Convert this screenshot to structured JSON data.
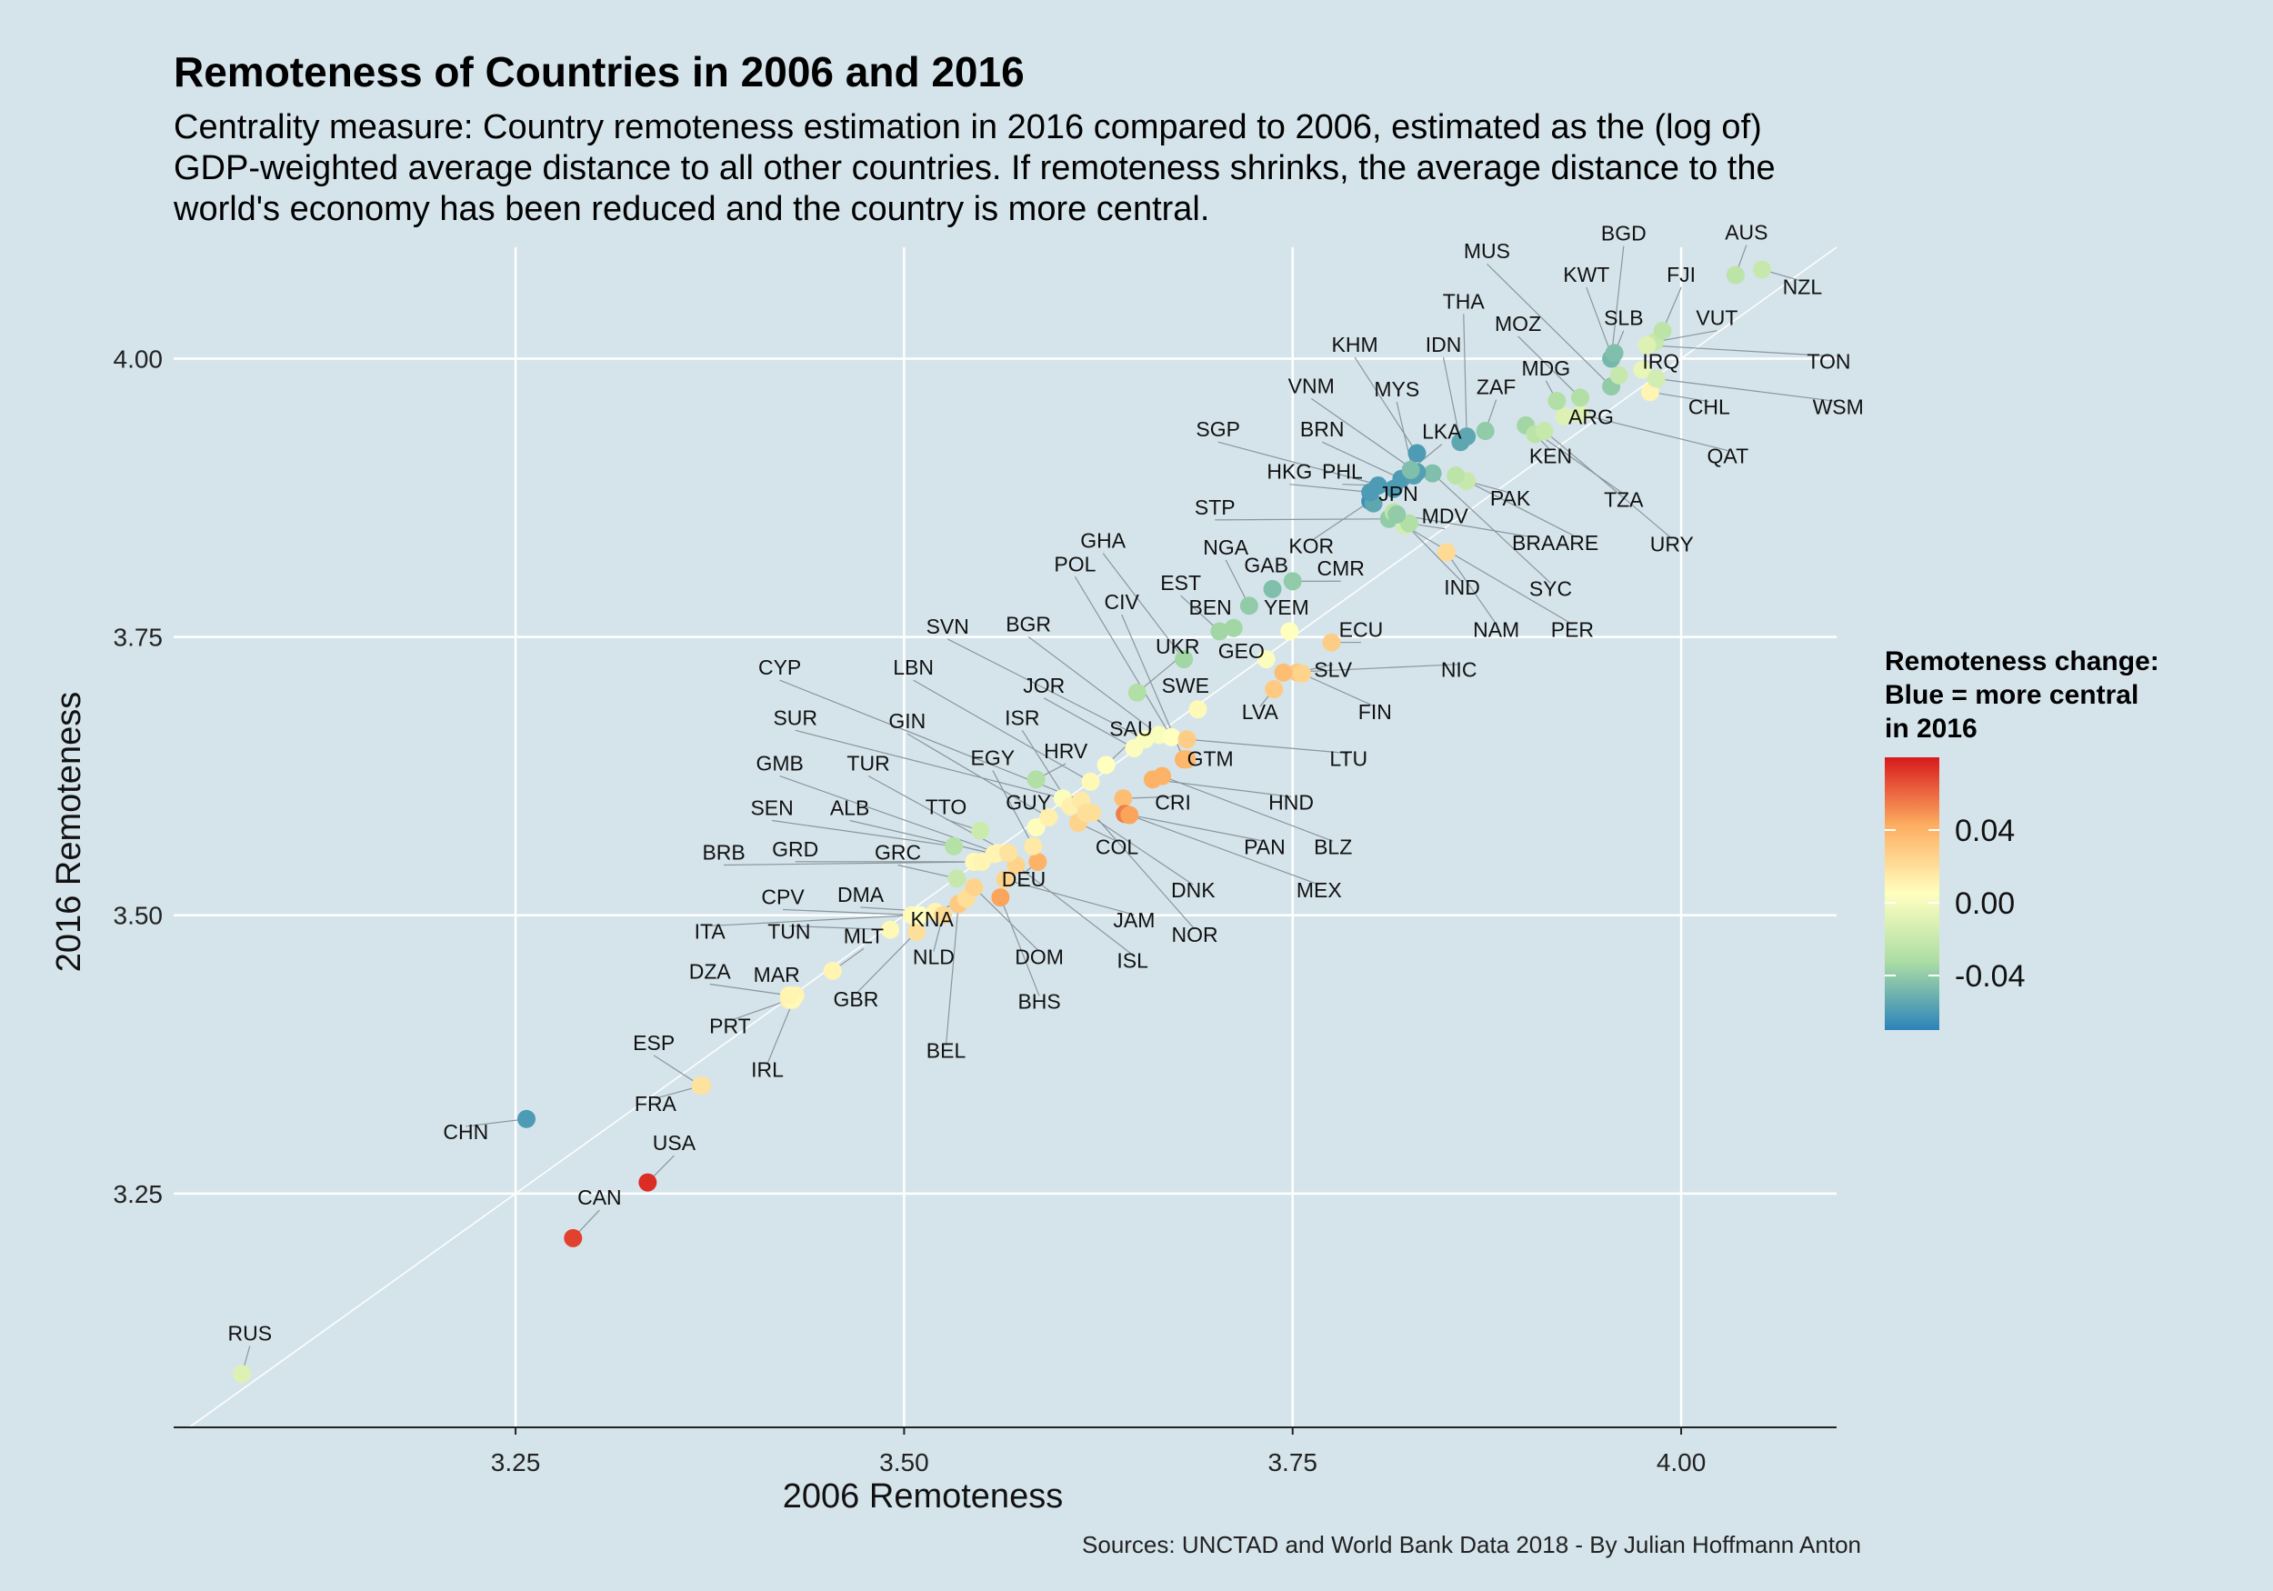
{
  "chart_data": {
    "type": "scatter",
    "title": "Remoteness of Countries in 2006 and 2016",
    "subtitle": [
      "Centrality measure: Country remoteness estimation in 2016 compared to 2006, estimated as the (log of)",
      "GDP-weighted average distance to all other countries. If remoteness shrinks, the average distance to the",
      "world's economy has been reduced and the country is more central."
    ],
    "xlabel": "2006 Remoteness",
    "ylabel": "2016 Remoteness",
    "xlim": [
      3.03,
      4.1
    ],
    "ylim": [
      3.04,
      4.1
    ],
    "xticks": [
      3.25,
      3.5,
      3.75,
      4.0
    ],
    "xtick_labels": [
      "3.25",
      "3.50",
      "3.75",
      "4.00"
    ],
    "yticks": [
      3.25,
      3.5,
      3.75,
      4.0
    ],
    "ytick_labels": [
      "3.25",
      "3.50",
      "3.75",
      "4.00"
    ],
    "reference_line": "y = x",
    "legend": {
      "title": [
        "Remoteness change:",
        "Blue = more central",
        "in 2016"
      ],
      "ticks": [
        0.04,
        0.0,
        -0.04
      ],
      "tick_labels": [
        "0.04",
        "0.00",
        "-0.04"
      ],
      "range": [
        -0.07,
        0.08
      ],
      "colors": [
        "#2b83ba",
        "#abdda4",
        "#ffffbf",
        "#fdae61",
        "#d7191c"
      ]
    },
    "points": [
      {
        "code": "RUS",
        "x": 3.074,
        "y": 3.088,
        "lx": 3.079,
        "ly": 3.118
      },
      {
        "code": "CHN",
        "x": 3.257,
        "y": 3.317,
        "lx": 3.218,
        "ly": 3.299
      },
      {
        "code": "CAN",
        "x": 3.287,
        "y": 3.21,
        "lx": 3.304,
        "ly": 3.24
      },
      {
        "code": "USA",
        "x": 3.335,
        "y": 3.26,
        "lx": 3.352,
        "ly": 3.289
      },
      {
        "code": "FRA",
        "x": 3.37,
        "y": 3.347,
        "lx": 3.34,
        "ly": 3.324
      },
      {
        "code": "ESP",
        "x": 3.369,
        "y": 3.347,
        "lx": 3.339,
        "ly": 3.379
      },
      {
        "code": "PRT",
        "x": 3.426,
        "y": 3.424,
        "lx": 3.388,
        "ly": 3.394
      },
      {
        "code": "IRL",
        "x": 3.43,
        "y": 3.428,
        "lx": 3.412,
        "ly": 3.355
      },
      {
        "code": "MAR",
        "x": 3.428,
        "y": 3.424,
        "lx": 3.418,
        "ly": 3.44
      },
      {
        "code": "DZA",
        "x": 3.426,
        "y": 3.428,
        "lx": 3.375,
        "ly": 3.443
      },
      {
        "code": "MLT",
        "x": 3.454,
        "y": 3.45,
        "lx": 3.474,
        "ly": 3.475
      },
      {
        "code": "TUN",
        "x": 3.491,
        "y": 3.487,
        "lx": 3.426,
        "ly": 3.479
      },
      {
        "code": "ITA",
        "x": 3.505,
        "y": 3.5,
        "lx": 3.375,
        "ly": 3.479
      },
      {
        "code": "GBR",
        "x": 3.508,
        "y": 3.485,
        "lx": 3.469,
        "ly": 3.418
      },
      {
        "code": "CPV",
        "x": 3.51,
        "y": 3.5,
        "lx": 3.422,
        "ly": 3.51
      },
      {
        "code": "DMA",
        "x": 3.52,
        "y": 3.503,
        "lx": 3.472,
        "ly": 3.512
      },
      {
        "code": "NLD",
        "x": 3.525,
        "y": 3.5,
        "lx": 3.519,
        "ly": 3.456
      },
      {
        "code": "BEL",
        "x": 3.535,
        "y": 3.51,
        "lx": 3.527,
        "ly": 3.372
      },
      {
        "code": "KNA",
        "x": 3.54,
        "y": 3.515,
        "lx": 3.518,
        "ly": 3.49
      },
      {
        "code": "DOM",
        "x": 3.545,
        "y": 3.525,
        "lx": 3.587,
        "ly": 3.456
      },
      {
        "code": "BHS",
        "x": 3.562,
        "y": 3.516,
        "lx": 3.587,
        "ly": 3.416
      },
      {
        "code": "JAM",
        "x": 3.565,
        "y": 3.532,
        "lx": 3.648,
        "ly": 3.489
      },
      {
        "code": "ISL",
        "x": 3.572,
        "y": 3.545,
        "lx": 3.647,
        "ly": 3.453
      },
      {
        "code": "DEU",
        "x": 3.586,
        "y": 3.548,
        "lx": 3.577,
        "ly": 3.526
      },
      {
        "code": "GRC",
        "x": 3.534,
        "y": 3.533,
        "lx": 3.496,
        "ly": 3.55
      },
      {
        "code": "GRD",
        "x": 3.545,
        "y": 3.548,
        "lx": 3.43,
        "ly": 3.553
      },
      {
        "code": "BRB",
        "x": 3.55,
        "y": 3.548,
        "lx": 3.384,
        "ly": 3.55
      },
      {
        "code": "ALB",
        "x": 3.558,
        "y": 3.555,
        "lx": 3.465,
        "ly": 3.59
      },
      {
        "code": "SEN",
        "x": 3.532,
        "y": 3.562,
        "lx": 3.415,
        "ly": 3.59
      },
      {
        "code": "TTO",
        "x": 3.549,
        "y": 3.576,
        "lx": 3.527,
        "ly": 3.591
      },
      {
        "code": "GMB",
        "x": 3.56,
        "y": 3.556,
        "lx": 3.42,
        "ly": 3.63
      },
      {
        "code": "TUR",
        "x": 3.567,
        "y": 3.556,
        "lx": 3.477,
        "ly": 3.63
      },
      {
        "code": "GUY",
        "x": 3.585,
        "y": 3.579,
        "lx": 3.58,
        "ly": 3.595
      },
      {
        "code": "EGY",
        "x": 3.583,
        "y": 3.562,
        "lx": 3.557,
        "ly": 3.635
      },
      {
        "code": "GIN",
        "x": 3.593,
        "y": 3.588,
        "lx": 3.502,
        "ly": 3.668
      },
      {
        "code": "SUR",
        "x": 3.602,
        "y": 3.605,
        "lx": 3.43,
        "ly": 3.671
      },
      {
        "code": "HRV",
        "x": 3.585,
        "y": 3.622,
        "lx": 3.604,
        "ly": 3.641
      },
      {
        "code": "ISR",
        "x": 3.607,
        "y": 3.598,
        "lx": 3.576,
        "ly": 3.671
      },
      {
        "code": "CYP",
        "x": 3.614,
        "y": 3.603,
        "lx": 3.42,
        "ly": 3.716
      },
      {
        "code": "LBN",
        "x": 3.62,
        "y": 3.62,
        "lx": 3.506,
        "ly": 3.716
      },
      {
        "code": "COL",
        "x": 3.612,
        "y": 3.583,
        "lx": 3.637,
        "ly": 3.555
      },
      {
        "code": "DNK",
        "x": 3.617,
        "y": 3.592,
        "lx": 3.686,
        "ly": 3.516
      },
      {
        "code": "NOR",
        "x": 3.621,
        "y": 3.592,
        "lx": 3.687,
        "ly": 3.476
      },
      {
        "code": "CRI",
        "x": 3.641,
        "y": 3.605,
        "lx": 3.673,
        "ly": 3.595
      },
      {
        "code": "PAN",
        "x": 3.642,
        "y": 3.591,
        "lx": 3.732,
        "ly": 3.555
      },
      {
        "code": "MEX",
        "x": 3.645,
        "y": 3.59,
        "lx": 3.767,
        "ly": 3.516
      },
      {
        "code": "SAU",
        "x": 3.63,
        "y": 3.635,
        "lx": 3.646,
        "ly": 3.661
      },
      {
        "code": "JOR",
        "x": 3.648,
        "y": 3.65,
        "lx": 3.59,
        "ly": 3.7
      },
      {
        "code": "SVN",
        "x": 3.655,
        "y": 3.658,
        "lx": 3.528,
        "ly": 3.753
      },
      {
        "code": "BGR",
        "x": 3.664,
        "y": 3.662,
        "lx": 3.58,
        "ly": 3.755
      },
      {
        "code": "POL",
        "x": 3.672,
        "y": 3.66,
        "lx": 3.61,
        "ly": 3.809
      },
      {
        "code": "CIV",
        "x": 3.68,
        "y": 3.64,
        "lx": 3.64,
        "ly": 3.775
      },
      {
        "code": "UKR",
        "x": 3.65,
        "y": 3.7,
        "lx": 3.676,
        "ly": 3.735
      },
      {
        "code": "SWE",
        "x": 3.689,
        "y": 3.685,
        "lx": 3.681,
        "ly": 3.7
      },
      {
        "code": "HND",
        "x": 3.66,
        "y": 3.622,
        "lx": 3.749,
        "ly": 3.595
      },
      {
        "code": "BLZ",
        "x": 3.666,
        "y": 3.625,
        "lx": 3.776,
        "ly": 3.555
      },
      {
        "code": "GTM",
        "x": 3.682,
        "y": 3.64,
        "lx": 3.697,
        "ly": 3.634
      },
      {
        "code": "LTU",
        "x": 3.682,
        "y": 3.658,
        "lx": 3.786,
        "ly": 3.634
      },
      {
        "code": "GHA",
        "x": 3.68,
        "y": 3.73,
        "lx": 3.628,
        "ly": 3.83
      },
      {
        "code": "EST",
        "x": 3.703,
        "y": 3.755,
        "lx": 3.678,
        "ly": 3.792
      },
      {
        "code": "GEO",
        "x": 3.733,
        "y": 3.73,
        "lx": 3.717,
        "ly": 3.731
      },
      {
        "code": "SLV",
        "x": 3.753,
        "y": 3.718,
        "lx": 3.776,
        "ly": 3.714
      },
      {
        "code": "NIC",
        "x": 3.744,
        "y": 3.718,
        "lx": 3.857,
        "ly": 3.714
      },
      {
        "code": "LVA",
        "x": 3.738,
        "y": 3.703,
        "lx": 3.729,
        "ly": 3.676
      },
      {
        "code": "FIN",
        "x": 3.756,
        "y": 3.717,
        "lx": 3.803,
        "ly": 3.676
      },
      {
        "code": "ECU",
        "x": 3.775,
        "y": 3.745,
        "lx": 3.794,
        "ly": 3.75
      },
      {
        "code": "YEM",
        "x": 3.748,
        "y": 3.755,
        "lx": 3.746,
        "ly": 3.77
      },
      {
        "code": "BEN",
        "x": 3.712,
        "y": 3.758,
        "lx": 3.697,
        "ly": 3.77
      },
      {
        "code": "NGA",
        "x": 3.722,
        "y": 3.778,
        "lx": 3.707,
        "ly": 3.824
      },
      {
        "code": "GAB",
        "x": 3.737,
        "y": 3.793,
        "lx": 3.733,
        "ly": 3.808
      },
      {
        "code": "CMR",
        "x": 3.75,
        "y": 3.8,
        "lx": 3.781,
        "ly": 3.805
      },
      {
        "code": "STP",
        "x": 3.812,
        "y": 3.856,
        "lx": 3.7,
        "ly": 3.86
      },
      {
        "code": "NAM",
        "x": 3.849,
        "y": 3.826,
        "lx": 3.881,
        "ly": 3.75
      },
      {
        "code": "IND",
        "x": 3.815,
        "y": 3.862,
        "lx": 3.859,
        "ly": 3.788
      },
      {
        "code": "PER",
        "x": 3.822,
        "y": 3.85,
        "lx": 3.93,
        "ly": 3.75
      },
      {
        "code": "KOR",
        "x": 3.8,
        "y": 3.872,
        "lx": 3.762,
        "ly": 3.825
      },
      {
        "code": "JPN",
        "x": 3.802,
        "y": 3.87,
        "lx": 3.818,
        "ly": 3.872
      },
      {
        "code": "HKG",
        "x": 3.8,
        "y": 3.88,
        "lx": 3.748,
        "ly": 3.892
      },
      {
        "code": "PHL",
        "x": 3.805,
        "y": 3.886,
        "lx": 3.782,
        "ly": 3.892
      },
      {
        "code": "MDV",
        "x": 3.825,
        "y": 3.852,
        "lx": 3.848,
        "ly": 3.852
      },
      {
        "code": "BRA",
        "x": 3.817,
        "y": 3.86,
        "lx": 3.905,
        "ly": 3.828
      },
      {
        "code": "SYC",
        "x": 3.84,
        "y": 3.897,
        "lx": 3.916,
        "ly": 3.787
      },
      {
        "code": "SGP",
        "x": 3.815,
        "y": 3.883,
        "lx": 3.702,
        "ly": 3.93
      },
      {
        "code": "BRN",
        "x": 3.82,
        "y": 3.892,
        "lx": 3.769,
        "ly": 3.93
      },
      {
        "code": "VNM",
        "x": 3.83,
        "y": 3.898,
        "lx": 3.762,
        "ly": 3.969
      },
      {
        "code": "MYS",
        "x": 3.828,
        "y": 3.895,
        "lx": 3.817,
        "ly": 3.966
      },
      {
        "code": "LKA",
        "x": 3.826,
        "y": 3.9,
        "lx": 3.846,
        "ly": 3.928
      },
      {
        "code": "PAK",
        "x": 3.862,
        "y": 3.89,
        "lx": 3.89,
        "ly": 3.868
      },
      {
        "code": "ARE",
        "x": 3.855,
        "y": 3.895,
        "lx": 3.933,
        "ly": 3.828
      },
      {
        "code": "KHM",
        "x": 3.83,
        "y": 3.915,
        "lx": 3.79,
        "ly": 4.006
      },
      {
        "code": "IDN",
        "x": 3.858,
        "y": 3.925,
        "lx": 3.847,
        "ly": 4.006
      },
      {
        "code": "THA",
        "x": 3.862,
        "y": 3.93,
        "lx": 3.86,
        "ly": 4.045
      },
      {
        "code": "ZAF",
        "x": 3.874,
        "y": 3.935,
        "lx": 3.881,
        "ly": 3.968
      },
      {
        "code": "TZA",
        "x": 3.9,
        "y": 3.94,
        "lx": 3.963,
        "ly": 3.867
      },
      {
        "code": "KEN",
        "x": 3.906,
        "y": 3.932,
        "lx": 3.916,
        "ly": 3.906
      },
      {
        "code": "URY",
        "x": 3.912,
        "y": 3.935,
        "lx": 3.994,
        "ly": 3.827
      },
      {
        "code": "QAT",
        "x": 3.935,
        "y": 3.95,
        "lx": 4.03,
        "ly": 3.906
      },
      {
        "code": "ARG",
        "x": 3.925,
        "y": 3.948,
        "lx": 3.942,
        "ly": 3.941
      },
      {
        "code": "MDG",
        "x": 3.92,
        "y": 3.962,
        "lx": 3.913,
        "ly": 3.985
      },
      {
        "code": "MOZ",
        "x": 3.935,
        "y": 3.965,
        "lx": 3.895,
        "ly": 4.025
      },
      {
        "code": "MUS",
        "x": 3.955,
        "y": 3.975,
        "lx": 3.875,
        "ly": 4.09
      },
      {
        "code": "KWT",
        "x": 3.96,
        "y": 3.985,
        "lx": 3.939,
        "ly": 4.069
      },
      {
        "code": "BGD",
        "x": 3.955,
        "y": 4.0,
        "lx": 3.963,
        "ly": 4.106
      },
      {
        "code": "SLB",
        "x": 3.957,
        "y": 4.005,
        "lx": 3.963,
        "ly": 4.03
      },
      {
        "code": "IRQ",
        "x": 3.975,
        "y": 3.99,
        "lx": 3.987,
        "ly": 3.991
      },
      {
        "code": "CHL",
        "x": 3.98,
        "y": 3.97,
        "lx": 4.018,
        "ly": 3.95
      },
      {
        "code": "VUT",
        "x": 3.983,
        "y": 4.015,
        "lx": 4.023,
        "ly": 4.03
      },
      {
        "code": "FJI",
        "x": 3.988,
        "y": 4.025,
        "lx": 4.0,
        "ly": 4.069
      },
      {
        "code": "TON",
        "x": 3.978,
        "y": 4.012,
        "lx": 4.095,
        "ly": 3.991
      },
      {
        "code": "WSM",
        "x": 3.984,
        "y": 3.982,
        "lx": 4.101,
        "ly": 3.95
      },
      {
        "code": "AUS",
        "x": 4.035,
        "y": 4.075,
        "lx": 4.042,
        "ly": 4.107
      },
      {
        "code": "NZL",
        "x": 4.052,
        "y": 4.08,
        "lx": 4.078,
        "ly": 4.058
      }
    ],
    "changes": {
      "RUS": -0.01,
      "CHN": -0.06,
      "CAN": 0.07,
      "USA": 0.075,
      "FRA": 0.02,
      "ESP": 0.018,
      "PRT": 0.012,
      "IRL": 0.01,
      "MAR": 0.008,
      "DZA": 0.01,
      "MLT": 0.01,
      "TUN": 0.008,
      "ITA": 0.008,
      "GBR": 0.02,
      "CPV": 0.005,
      "DMA": 0.01,
      "NLD": 0.022,
      "BEL": 0.03,
      "KNA": 0.02,
      "DOM": 0.025,
      "BHS": 0.045,
      "JAM": 0.025,
      "ISL": 0.025,
      "DEU": 0.04,
      "GRC": -0.02,
      "GRD": 0.008,
      "BRB": 0.01,
      "ALB": 0.01,
      "SEN": -0.028,
      "TTO": -0.018,
      "GMB": 0.01,
      "TUR": 0.018,
      "GUY": 0.006,
      "EGY": 0.015,
      "GIN": 0.012,
      "SUR": 0.003,
      "HRV": -0.03,
      "ISR": 0.012,
      "CYP": 0.015,
      "LBN": 0.008,
      "COL": 0.025,
      "DNK": 0.02,
      "NOR": 0.02,
      "CRI": 0.035,
      "PAN": 0.055,
      "MEX": 0.045,
      "SAU": 0.005,
      "JOR": 0.003,
      "SVN": 0.002,
      "BGR": 0.002,
      "POL": 0.005,
      "CIV": 0.04,
      "UKR": -0.03,
      "SWE": 0.008,
      "HND": 0.04,
      "BLZ": 0.04,
      "GTM": 0.038,
      "LTU": 0.028,
      "GHA": -0.035,
      "EST": -0.035,
      "GEO": 0.003,
      "SLV": 0.03,
      "NIC": 0.035,
      "LVA": 0.03,
      "FIN": 0.025,
      "ECU": 0.028,
      "YEM": 0.005,
      "BEN": -0.035,
      "NGA": -0.04,
      "GAB": -0.045,
      "CMR": -0.04,
      "STP": -0.04,
      "NAM": 0.022,
      "IND": -0.025,
      "PER": -0.015,
      "KOR": -0.065,
      "JPN": -0.055,
      "HKG": -0.06,
      "PHL": -0.06,
      "MDV": -0.03,
      "BRA": -0.04,
      "SYC": -0.045,
      "SGP": -0.06,
      "BRN": -0.06,
      "VNM": -0.058,
      "MYS": -0.058,
      "LKA": -0.045,
      "PAK": -0.02,
      "ARE": -0.025,
      "KHM": -0.06,
      "IDN": -0.055,
      "THA": -0.055,
      "ZAF": -0.04,
      "TZA": -0.035,
      "KEN": -0.025,
      "URY": -0.02,
      "QAT": -0.01,
      "ARG": -0.01,
      "MDG": -0.03,
      "MOZ": -0.03,
      "MUS": -0.04,
      "KWT": -0.02,
      "BGD": -0.048,
      "SLB": -0.045,
      "IRQ": -0.005,
      "CHL": 0.01,
      "VUT": -0.02,
      "FJI": -0.025,
      "TON": -0.01,
      "WSM": -0.015,
      "AUS": -0.025,
      "NZL": -0.02
    }
  },
  "source_note": "Sources: UNCTAD and World Bank Data 2018 - By Julian Hoffmann Anton"
}
